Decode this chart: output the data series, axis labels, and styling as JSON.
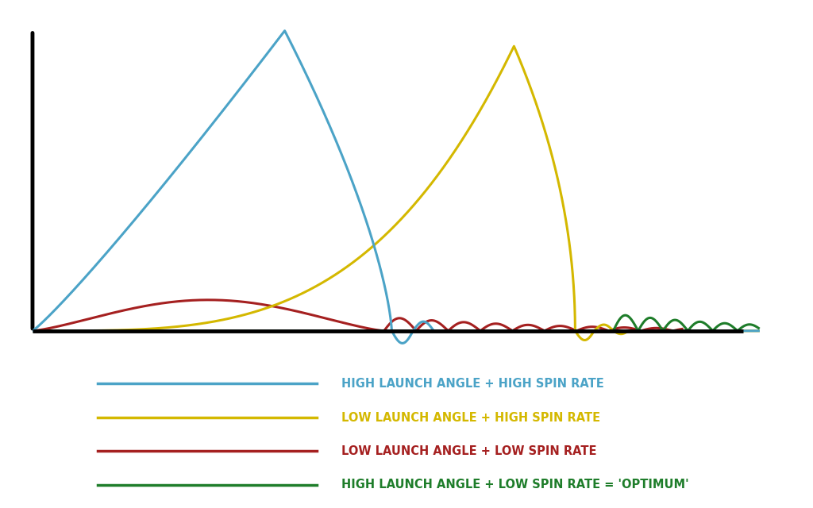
{
  "background_color": "#ffffff",
  "colors": {
    "blue": "#4BA3C7",
    "yellow": "#D4B800",
    "red": "#A52020",
    "green": "#1E7D2A"
  },
  "legend_entries": [
    {
      "color": "#4BA3C7",
      "label": "HIGH LAUNCH ANGLE + HIGH SPIN RATE"
    },
    {
      "color": "#D4B800",
      "label": "LOW LAUNCH ANGLE + HIGH SPIN RATE"
    },
    {
      "color": "#A52020",
      "label": "LOW LAUNCH ANGLE + LOW SPIN RATE"
    },
    {
      "color": "#1E7D2A",
      "label": "HIGH LAUNCH ANGLE + LOW SPIN RATE = 'OPTIMUM'"
    }
  ],
  "line_width": 2.2,
  "axis_lw": 3.5
}
